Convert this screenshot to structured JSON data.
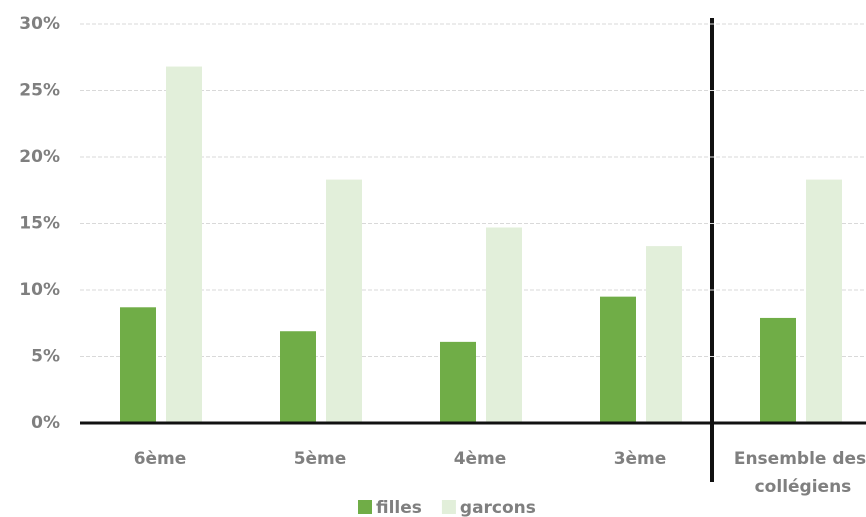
{
  "chart_data": {
    "type": "bar",
    "categories": [
      "6ème",
      "5ème",
      "4ème",
      "3ème",
      "Ensemble des collégiens"
    ],
    "series": [
      {
        "name": "filles",
        "color": "#70ad47",
        "values": [
          8.7,
          6.9,
          6.1,
          9.5,
          7.9
        ]
      },
      {
        "name": "garcons",
        "color": "#e2efda",
        "values": [
          26.8,
          18.3,
          14.7,
          13.3,
          18.3
        ]
      }
    ],
    "ylim": [
      0,
      30
    ],
    "yticks": [
      {
        "value": 0,
        "label": "0%"
      },
      {
        "value": 5,
        "label": "5%"
      },
      {
        "value": 10,
        "label": "10%"
      },
      {
        "value": 15,
        "label": "15%"
      },
      {
        "value": 20,
        "label": "20%"
      },
      {
        "value": 25,
        "label": "25%"
      },
      {
        "value": 30,
        "label": "30%"
      }
    ],
    "grid": true,
    "legend": "bottom"
  }
}
